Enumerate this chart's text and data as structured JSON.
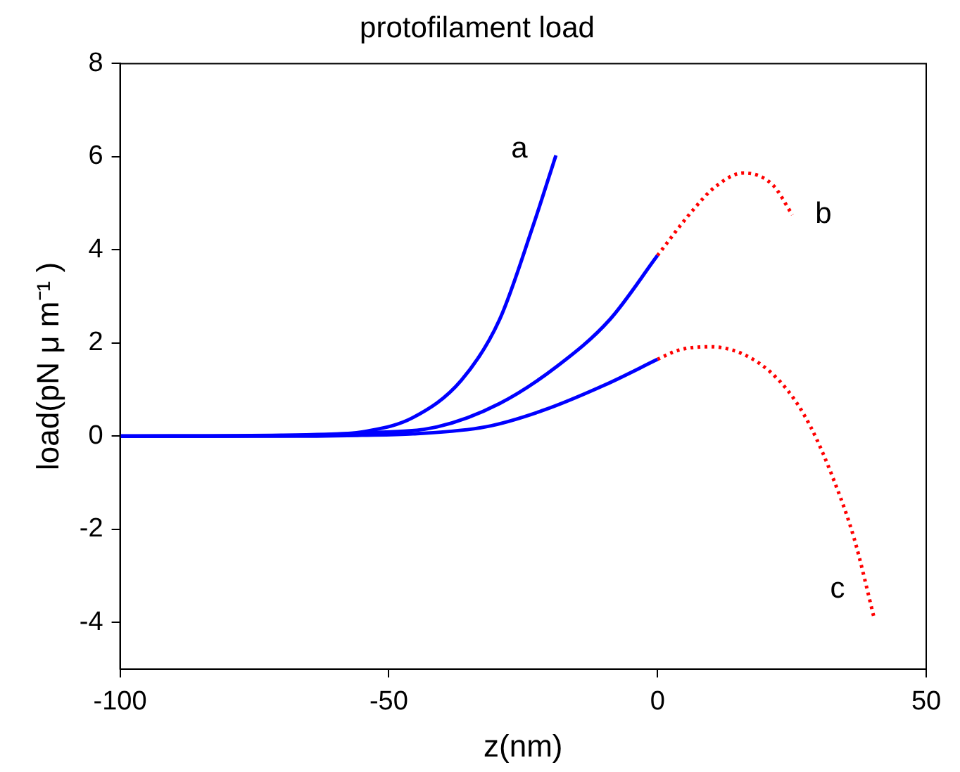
{
  "chart_data": {
    "type": "line",
    "title": "protofilament load",
    "xlabel": "z(nm)",
    "ylabel": "load(pN μ m⁻¹ )",
    "xlim": [
      -100,
      50
    ],
    "xticks": [
      -100,
      -50,
      0,
      50
    ],
    "ylim": [
      -5,
      8
    ],
    "yticks": [
      -4,
      -2,
      0,
      2,
      4,
      6,
      8
    ],
    "grid": false,
    "legend": false,
    "marker": "none",
    "series": [
      {
        "name": "a",
        "color": "#0000ff",
        "line_style": "solid",
        "x": [
          -100,
          -70,
          -60,
          -54.4,
          -45.5,
          -36.5,
          -29.4,
          -23.2,
          -18.9
        ],
        "values": [
          0,
          0.01,
          0.04,
          0.1,
          0.4,
          1.2,
          2.5,
          4.5,
          6.03
        ]
      },
      {
        "color": "#0000ff",
        "line_style": "solid",
        "x": [
          -100,
          -70,
          -55,
          -41,
          -29.4,
          -18.7,
          -8.9,
          0
        ],
        "values": [
          0,
          0.02,
          0.07,
          0.2,
          0.7,
          1.5,
          2.5,
          3.88
        ]
      },
      {
        "name": "b",
        "color": "#ff0000",
        "line_style": "dotted",
        "x": [
          0,
          6.2,
          10.7,
          16,
          21.4,
          25.1
        ],
        "values": [
          3.88,
          4.8,
          5.35,
          5.65,
          5.4,
          4.75
        ]
      },
      {
        "color": "#0000ff",
        "line_style": "solid",
        "x": [
          -100,
          -70,
          -55,
          -45.5,
          -32,
          -21.4,
          -9.8,
          0
        ],
        "values": [
          0,
          0,
          0.02,
          0.05,
          0.2,
          0.55,
          1.1,
          1.65
        ]
      },
      {
        "name": "c",
        "color": "#ff0000",
        "line_style": "dotted",
        "x": [
          0,
          4,
          9.8,
          17.8,
          24.1,
          28.5,
          33,
          36.6,
          40.3
        ],
        "values": [
          1.65,
          1.85,
          1.92,
          1.65,
          1.0,
          0.2,
          -1.0,
          -2.2,
          -3.9
        ]
      }
    ]
  }
}
